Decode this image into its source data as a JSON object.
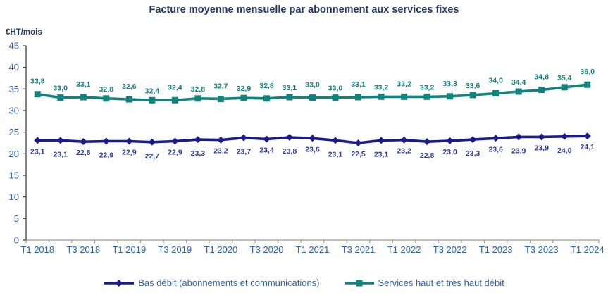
{
  "title": "Facture moyenne mensuelle par abonnement aux services fixes",
  "y_axis_unit": "€HT/mois",
  "chart_data": {
    "type": "line",
    "x_tick_labels": [
      "T1 2018",
      "T3 2018",
      "T1 2019",
      "T3 2019",
      "T1 2020",
      "T3 2020",
      "T1 2021",
      "T3 2021",
      "T1 2022",
      "T3 2022",
      "T1 2023",
      "T3 2023",
      "T1 2024"
    ],
    "n_points": 25,
    "ylim": [
      0,
      45
    ],
    "y_tick_step": 5,
    "grid": false,
    "legend_position": "bottom",
    "decimal_separator": ",",
    "axis_label_color": "#2A62B2",
    "series": [
      {
        "name": "Bas débit (abonnements et communications)",
        "color": "#191B8C",
        "label_color": "#2B3A9E",
        "marker": "diamond",
        "label_position": "below",
        "values": [
          23.1,
          23.1,
          22.8,
          22.9,
          22.9,
          22.7,
          22.9,
          23.3,
          23.2,
          23.7,
          23.4,
          23.8,
          23.6,
          23.1,
          22.5,
          23.1,
          23.2,
          22.8,
          23.0,
          23.3,
          23.6,
          23.9,
          23.9,
          24.0,
          24.1
        ]
      },
      {
        "name": "Services haut et très haut débit",
        "color": "#12827E",
        "label_color": "#12827E",
        "marker": "square",
        "label_position": "above",
        "values": [
          33.8,
          33.0,
          33.1,
          32.8,
          32.6,
          32.4,
          32.4,
          32.8,
          32.7,
          32.9,
          32.8,
          33.1,
          33.0,
          33.0,
          33.1,
          33.2,
          33.2,
          33.2,
          33.3,
          33.6,
          34.0,
          34.4,
          34.8,
          35.4,
          36.0
        ]
      }
    ]
  }
}
